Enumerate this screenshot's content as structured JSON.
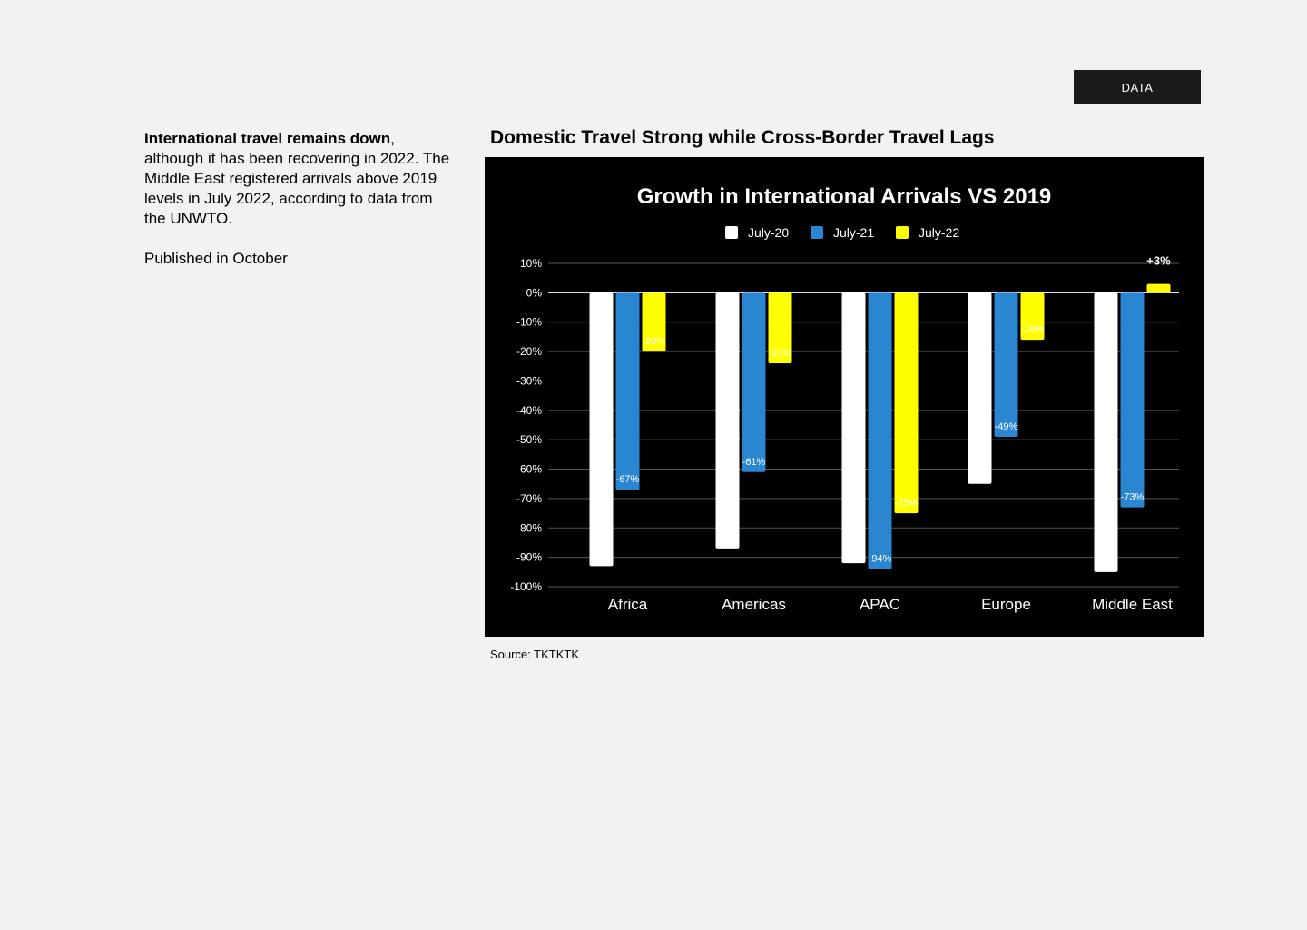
{
  "header": {
    "section_tag": "DATA"
  },
  "intro": {
    "lead_bold": "International travel remains down",
    "lead_rest": ", although it has been recovering in 2022. The Middle East registered arrivals above 2019 levels in July 2022, according to data from the UNWTO.",
    "published": "Published in October"
  },
  "figure": {
    "heading": "Domestic Travel Strong while Cross-Border Travel Lags",
    "source": "Source: TKTKTK"
  },
  "colors": {
    "july20": "#ffffff",
    "july21": "#2a86d1",
    "july22": "#ffff00",
    "background": "#000000",
    "grid": "#555555"
  },
  "chart_data": {
    "type": "bar",
    "title": "Growth in International Arrivals VS 2019",
    "xlabel": "",
    "ylabel": "",
    "categories": [
      "Africa",
      "Americas",
      "APAC",
      "Europe",
      "Middle East"
    ],
    "series": [
      {
        "name": "July-20",
        "values": [
          -93,
          -87,
          -92,
          -65,
          -95
        ],
        "labels": [
          "",
          "",
          "",
          "",
          ""
        ]
      },
      {
        "name": "July-21",
        "values": [
          -67,
          -61,
          -94,
          -49,
          -73
        ],
        "labels": [
          "-67%",
          "-61%",
          "-94%",
          "-49%",
          "-73%"
        ]
      },
      {
        "name": "July-22",
        "values": [
          -20,
          -24,
          -75,
          -16,
          3
        ],
        "labels": [
          "-20%",
          "-24%",
          "-75%",
          "-16%",
          "+3%"
        ]
      }
    ],
    "ylim": [
      -100,
      10
    ],
    "yticks": [
      10,
      0,
      -10,
      -20,
      -30,
      -40,
      -50,
      -60,
      -70,
      -80,
      -90,
      -100
    ],
    "ytick_labels": [
      "10%",
      "0%",
      "-10%",
      "-20%",
      "-30%",
      "-40%",
      "-50%",
      "-60%",
      "-70%",
      "-80%",
      "-90%",
      "-100%"
    ],
    "grid": true,
    "legend": "top-center"
  }
}
